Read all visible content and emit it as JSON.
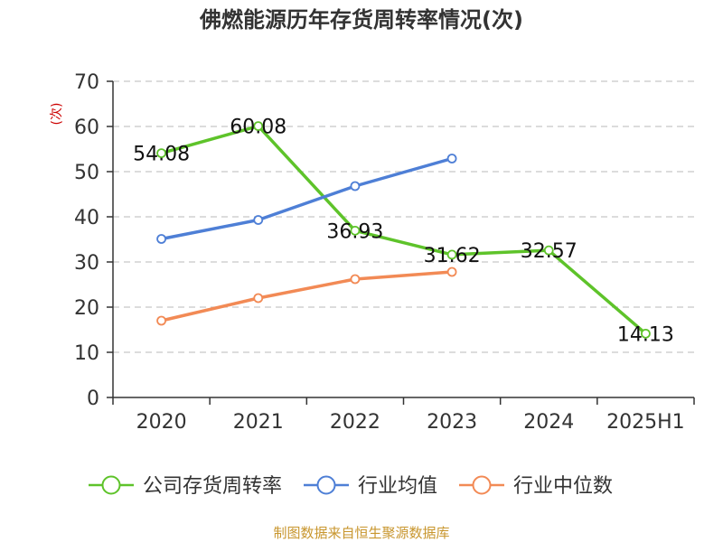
{
  "chart_data": {
    "type": "line",
    "title": "佛燃能源历年存货周转率情况(次)",
    "y_unit": "(次)",
    "categories": [
      "2020",
      "2021",
      "2022",
      "2023",
      "2024",
      "2025H1"
    ],
    "ylim": [
      0,
      70
    ],
    "yticks": [
      0,
      10,
      20,
      30,
      40,
      50,
      60,
      70
    ],
    "grid": true,
    "legend_position": "bottom",
    "series": [
      {
        "name": "公司存货周转率",
        "color": "#5ec32a",
        "values": [
          54.08,
          60.08,
          36.93,
          31.62,
          32.57,
          14.13
        ],
        "labels": [
          "54.08",
          "60.08",
          "36.93",
          "31.62",
          "32.57",
          "14.13"
        ]
      },
      {
        "name": "行业均值",
        "color": "#4e7fd6",
        "values": [
          35.1,
          39.3,
          46.8,
          52.9,
          null,
          null
        ]
      },
      {
        "name": "行业中位数",
        "color": "#f28a55",
        "values": [
          17.0,
          22.0,
          26.2,
          27.8,
          null,
          null
        ]
      }
    ]
  },
  "source_text": "制图数据来自恒生聚源数据库"
}
